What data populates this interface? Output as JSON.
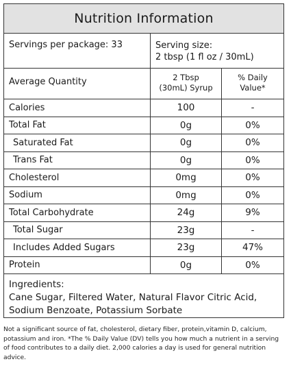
{
  "title": "Nutrition Information",
  "servings": {
    "per_package": "Servings per package: 33",
    "size_label": "Serving size:",
    "size_value": "2 tbsp (1 fl oz / 30mL)"
  },
  "header": {
    "col1": "Average Quantity",
    "col2_line1": "2 Tbsp",
    "col2_line2": "(30mL) Syrup",
    "col3_line1": "% Daily",
    "col3_line2": "Value*"
  },
  "rows": [
    {
      "name": "Calories",
      "qty": "100",
      "dv": "-"
    },
    {
      "name": "Total Fat",
      "qty": "0g",
      "dv": "0%"
    },
    {
      "name": "Saturated Fat",
      "qty": "0g",
      "dv": "0%"
    },
    {
      "name": "Trans Fat",
      "qty": "0g",
      "dv": "0%"
    },
    {
      "name": "Cholesterol",
      "qty": "0mg",
      "dv": "0%"
    },
    {
      "name": "Sodium",
      "qty": "0mg",
      "dv": "0%"
    },
    {
      "name": "Total Carbohydrate",
      "qty": "24g",
      "dv": "9%"
    },
    {
      "name": "Total Sugar",
      "qty": "23g",
      "dv": "-"
    },
    {
      "name": "Includes Added Sugars",
      "qty": "23g",
      "dv": "47%"
    },
    {
      "name": "Protein",
      "qty": "0g",
      "dv": "0%"
    }
  ],
  "ingredients": {
    "label": "Ingredients:",
    "text": "Cane Sugar, Filtered Water, Natural Flavor Citric Acid, Sodium Benzoate, Potassium Sorbate"
  },
  "footnote": "Not a significant source of fat, cholesterol, dietary fiber, protein,vitamin D, calcium, potassium and iron. *The % Daily Value (DV) tells you how much a nutrient in a serving of food contributes to a daily diet. 2,000 calories a day is used for general nutrition advice."
}
